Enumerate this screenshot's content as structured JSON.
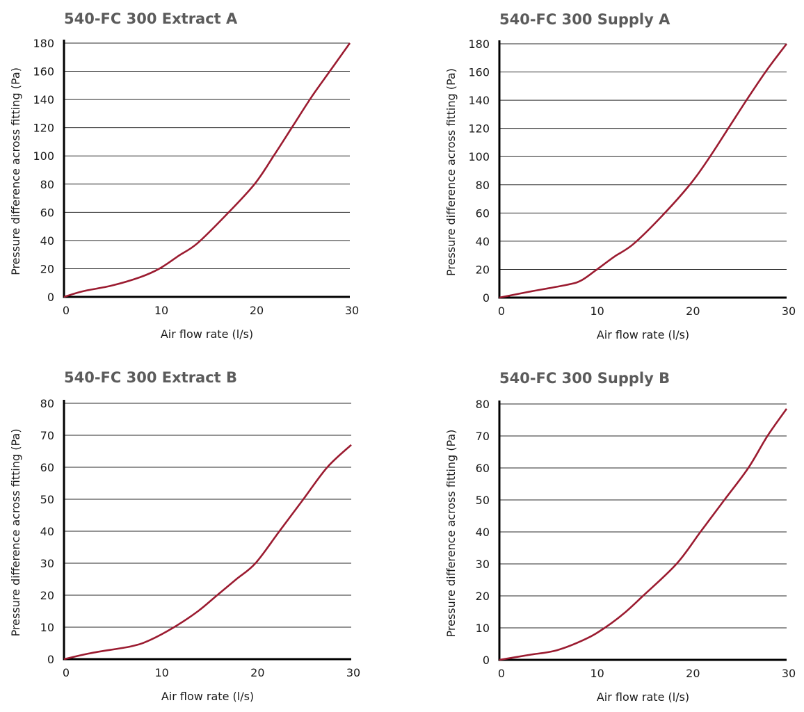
{
  "chart_data": [
    {
      "type": "line",
      "title": "540-FC 300 Extract A",
      "xlabel": "Air flow rate (l/s)",
      "ylabel": "Pressure difference across fitting (Pa)",
      "xlim": [
        0,
        30
      ],
      "ylim": [
        0,
        180
      ],
      "xticks": [
        0,
        10,
        20,
        30
      ],
      "yticks": [
        0,
        20,
        40,
        60,
        80,
        100,
        120,
        140,
        160,
        180
      ],
      "grid": "horizontal",
      "color": "#9b1b30",
      "x": [
        0,
        2,
        5,
        8,
        10,
        12,
        14,
        17,
        20,
        22,
        24,
        26,
        28,
        30
      ],
      "y": [
        0,
        4,
        8,
        14,
        20,
        29,
        38,
        58,
        80,
        100,
        121,
        142,
        161,
        180
      ]
    },
    {
      "type": "line",
      "title": "540-FC 300 Supply A",
      "xlabel": "Air flow rate (l/s)",
      "ylabel": "Pressure difference across fitting (Pa)",
      "xlim": [
        0,
        30
      ],
      "ylim": [
        0,
        180
      ],
      "xticks": [
        0,
        10,
        20,
        30
      ],
      "yticks": [
        0,
        20,
        40,
        60,
        80,
        100,
        120,
        140,
        160,
        180
      ],
      "grid": "horizontal",
      "color": "#9b1b30",
      "x": [
        0,
        3,
        7,
        8.5,
        10,
        12,
        14,
        17,
        20,
        22,
        24,
        26,
        28,
        30
      ],
      "y": [
        0,
        4,
        9,
        12,
        19,
        29,
        38,
        58,
        81,
        100,
        121,
        142,
        162,
        180
      ]
    },
    {
      "type": "line",
      "title": "540-FC 300 Extract B",
      "xlabel": "Air flow rate (l/s)",
      "ylabel": "Pressure difference across fitting (Pa)",
      "xlim": [
        0,
        30
      ],
      "ylim": [
        0,
        80
      ],
      "xticks": [
        0,
        10,
        20,
        30
      ],
      "yticks": [
        0,
        10,
        20,
        30,
        40,
        50,
        60,
        70,
        80
      ],
      "grid": "horizontal",
      "color": "#9b1b30",
      "x": [
        0,
        3,
        7,
        9,
        11.5,
        14,
        16,
        18,
        20,
        22.5,
        25,
        27.5,
        30
      ],
      "y": [
        0,
        2,
        4,
        6,
        10,
        15,
        20,
        25,
        30,
        40,
        50,
        60,
        67
      ]
    },
    {
      "type": "line",
      "title": "540-FC 300 Supply B",
      "xlabel": "Air flow rate (l/s)",
      "ylabel": "Pressure difference across fitting (Pa)",
      "xlim": [
        0,
        30
      ],
      "ylim": [
        0,
        80
      ],
      "xticks": [
        0,
        10,
        20,
        30
      ],
      "yticks": [
        0,
        10,
        20,
        30,
        40,
        50,
        60,
        70,
        80
      ],
      "grid": "horizontal",
      "color": "#9b1b30",
      "x": [
        0,
        3,
        6,
        9,
        11,
        13,
        15,
        18.5,
        21,
        23.5,
        26,
        28,
        30
      ],
      "y": [
        0,
        1.5,
        3,
        6.5,
        10,
        14.5,
        20,
        30,
        40,
        50,
        60,
        70,
        78.5
      ]
    }
  ]
}
